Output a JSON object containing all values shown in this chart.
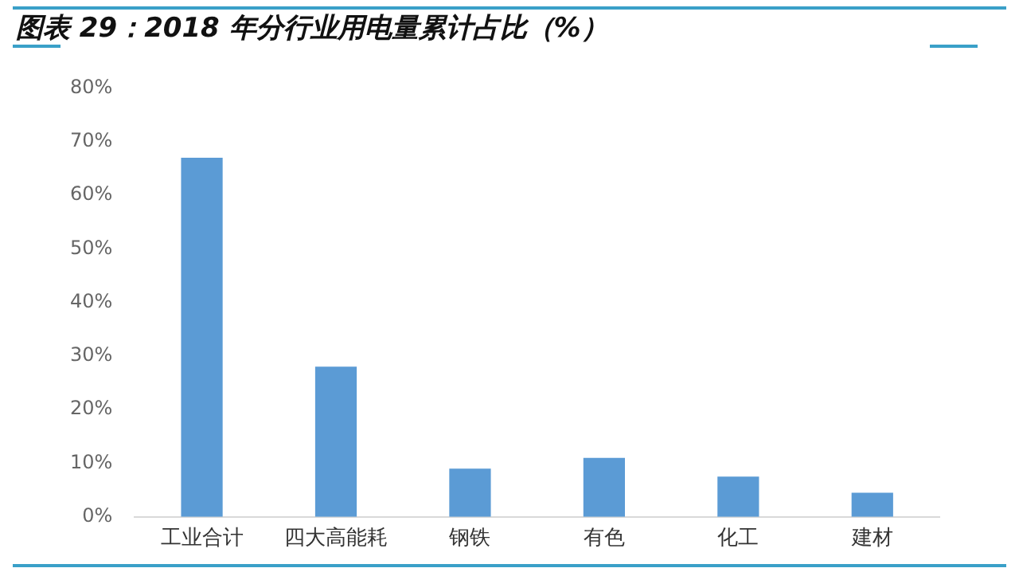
{
  "chart_data": {
    "type": "bar",
    "title": "图表 29：2018 年分行业用电量累计占比（%）",
    "categories": [
      "工业合计",
      "四大高能耗",
      "钢铁",
      "有色",
      "化工",
      "建材"
    ],
    "values": [
      67,
      28,
      9,
      11,
      7.5,
      4.5
    ],
    "color": "#5b9bd5",
    "ylim": [
      0,
      80
    ],
    "yticks": [
      {
        "value": 0,
        "label": "0%"
      },
      {
        "value": 10,
        "label": "10%"
      },
      {
        "value": 20,
        "label": "20%"
      },
      {
        "value": 30,
        "label": "30%"
      },
      {
        "value": 40,
        "label": "40%"
      },
      {
        "value": 50,
        "label": "50%"
      },
      {
        "value": 60,
        "label": "60%"
      },
      {
        "value": 70,
        "label": "70%"
      },
      {
        "value": 80,
        "label": "80%"
      }
    ],
    "grid": false,
    "legend": false
  }
}
